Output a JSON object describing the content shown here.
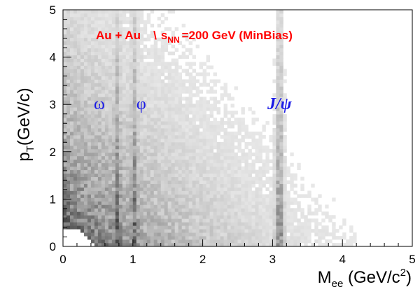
{
  "chart_data": {
    "type": "heatmap",
    "x_range": [
      0,
      5
    ],
    "y_range": [
      0,
      5
    ],
    "x_ticks": [
      0,
      1,
      2,
      3,
      4,
      5
    ],
    "y_ticks": [
      0,
      1,
      2,
      3,
      4,
      5
    ],
    "x_tick_labels": [
      "0",
      "1",
      "2",
      "3",
      "4",
      "5"
    ],
    "y_tick_labels": [
      "0",
      "1",
      "2",
      "3",
      "4",
      "5"
    ],
    "xlabel": {
      "main": "M",
      "sub": "ee",
      "rest": " (GeV/c",
      "sup": "2",
      "close": ")"
    },
    "ylabel": {
      "main": "p",
      "sub": "T",
      "rest": "(GeV/c)"
    },
    "annotation": {
      "system": "Au + Au",
      "sqrt": "\\",
      "s": "s",
      "s_sub": "NN",
      "energy": "=200 GeV (MinBias)"
    },
    "peaks": [
      {
        "label": "ω",
        "mass": 0.78
      },
      {
        "label": "φ",
        "mass": 1.02
      },
      {
        "label": "J/ψ",
        "mass": 3.1
      }
    ],
    "colors": {
      "annotation": "#ff0000",
      "peaks": "#1a1ae6"
    }
  }
}
